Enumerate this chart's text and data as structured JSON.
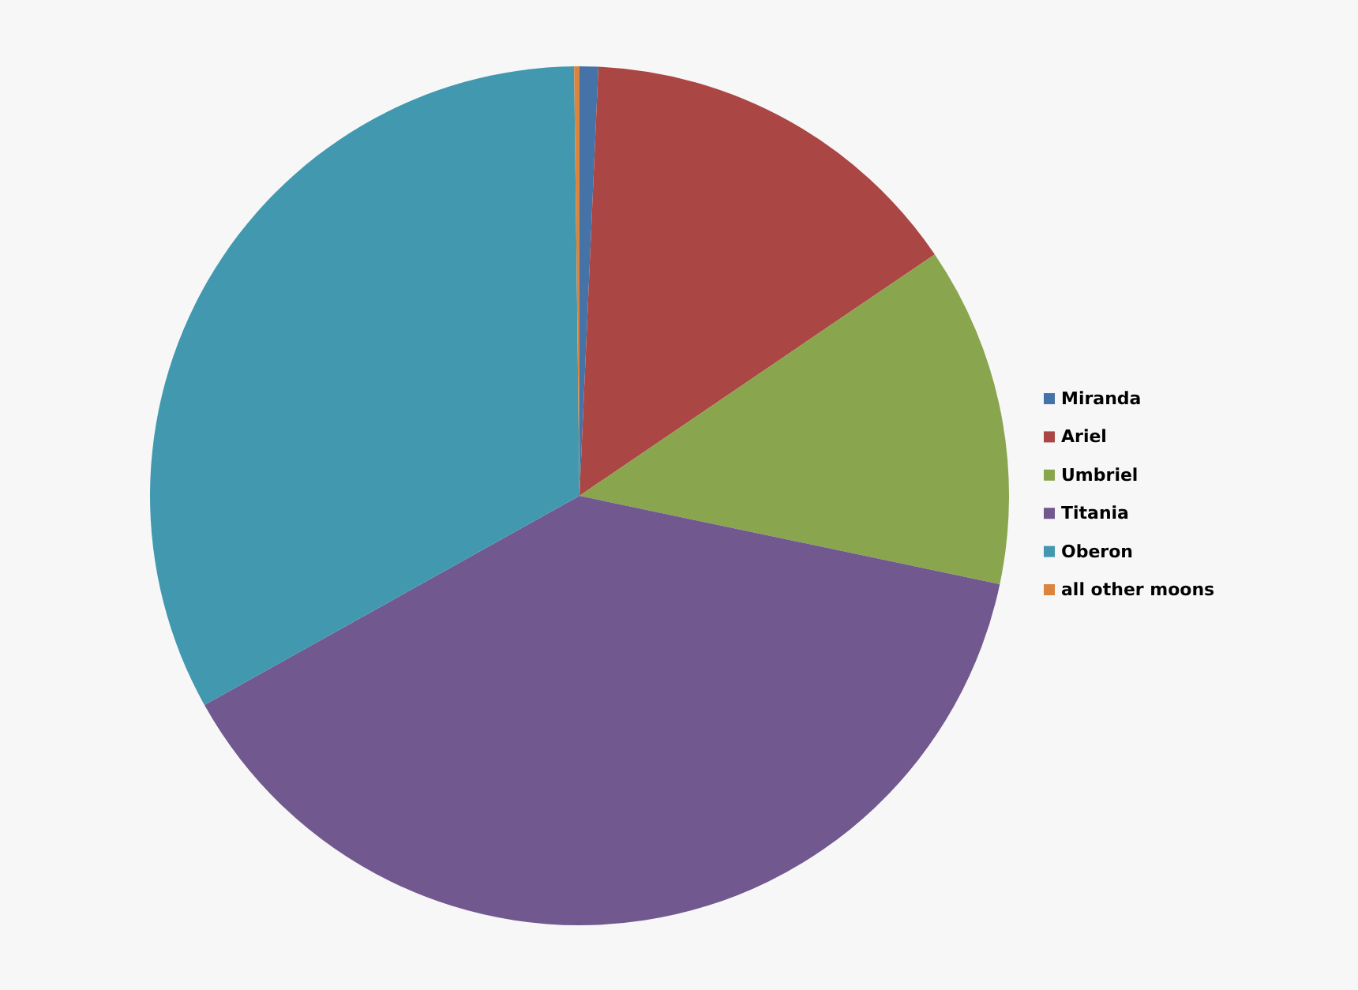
{
  "chart_data": {
    "type": "pie",
    "categories": [
      "Miranda",
      "Ariel",
      "Umbriel",
      "Titania",
      "Oberon",
      "all other moons"
    ],
    "values": [
      0.7,
      14.8,
      12.8,
      38.6,
      32.9,
      0.2
    ],
    "colors": [
      "#4572a7",
      "#aa4643",
      "#89a54e",
      "#71588f",
      "#4198af",
      "#db843d"
    ],
    "legend": "right"
  }
}
